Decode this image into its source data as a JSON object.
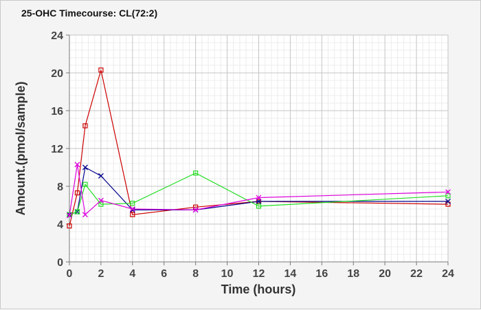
{
  "chart_data": {
    "type": "line",
    "title": "25-OHC Timecourse: CL(72:2)",
    "xlabel": "Time (hours)",
    "ylabel": "Amount.(pmol/sample)",
    "xlim": [
      0,
      24
    ],
    "ylim": [
      0,
      24
    ],
    "xticks": [
      0,
      2,
      4,
      6,
      8,
      10,
      12,
      14,
      16,
      18,
      20,
      22,
      24
    ],
    "yticks": [
      0,
      4,
      8,
      12,
      16,
      20,
      24
    ],
    "grid": true,
    "legend": "none",
    "series": [
      {
        "color": "#cc0000",
        "marker": "square",
        "x": [
          0,
          0.5,
          1,
          2,
          4,
          8,
          12,
          24
        ],
        "y": [
          3.8,
          7.3,
          14.4,
          20.3,
          5.0,
          5.8,
          6.4,
          6.1
        ]
      },
      {
        "color": "#00008b",
        "marker": "x",
        "x": [
          0,
          0.5,
          1,
          2,
          4,
          8,
          12,
          24
        ],
        "y": [
          5.0,
          5.3,
          10.0,
          9.1,
          5.5,
          5.5,
          6.4,
          6.4
        ]
      },
      {
        "color": "#22dd22",
        "marker": "square",
        "x": [
          0,
          0.5,
          1,
          2,
          4,
          8,
          12,
          24
        ],
        "y": [
          5.0,
          5.3,
          8.2,
          6.1,
          6.2,
          9.4,
          5.9,
          7.0
        ]
      },
      {
        "color": "#dd00dd",
        "marker": "x",
        "x": [
          0,
          0.5,
          1,
          2,
          4,
          8,
          12,
          24
        ],
        "y": [
          4.9,
          10.3,
          5.0,
          6.5,
          5.6,
          5.5,
          6.8,
          7.4
        ]
      }
    ]
  }
}
